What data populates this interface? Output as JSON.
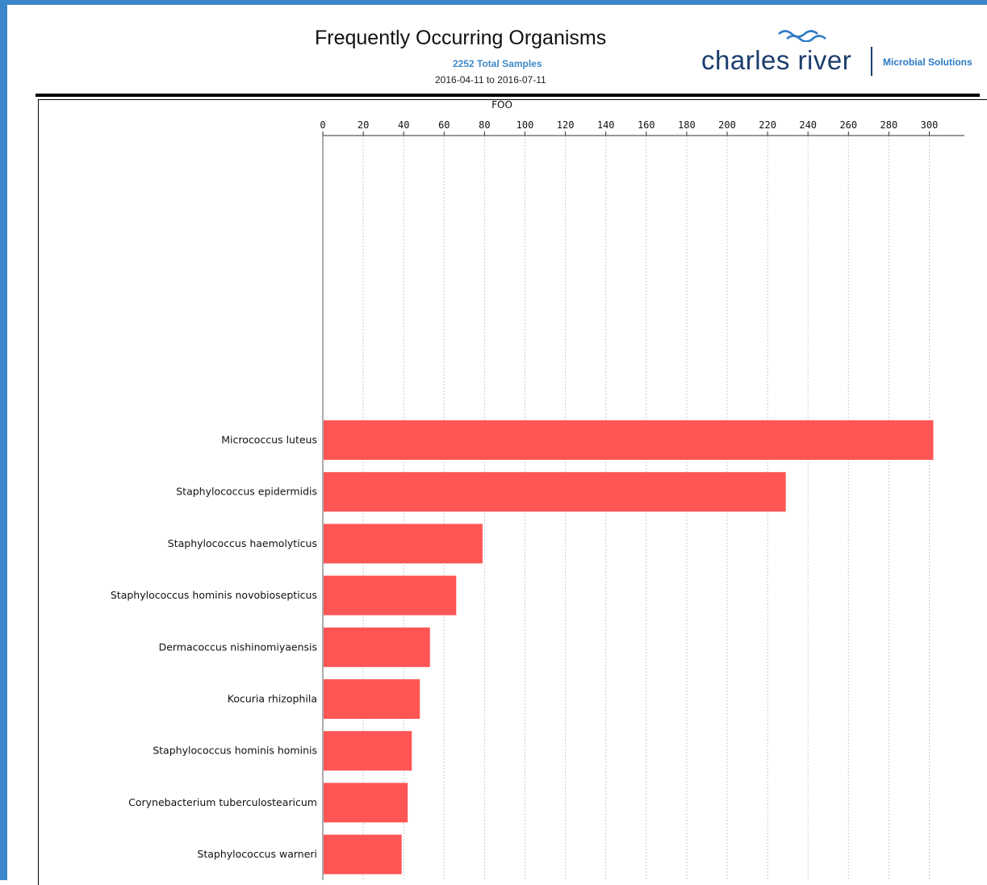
{
  "header": {
    "title": "Frequently Occurring Organisms",
    "total_samples": "2252 Total Samples",
    "date_range": "2016-04-11  to 2016-07-11"
  },
  "logo": {
    "wordmark": "charles river",
    "tagline": "Microbial Solutions",
    "icon": "waves-logo-icon"
  },
  "colors": {
    "frame": "#3c87c9",
    "bar": "#ff5555",
    "brand_text": "#1d3d6d",
    "accent_text": "#3f8ac7"
  },
  "chart_data": {
    "type": "bar",
    "orientation": "horizontal",
    "title": "",
    "xlabel": "FOO",
    "ylabel": "",
    "xlim": [
      0,
      312
    ],
    "x_ticks": [
      0,
      20,
      40,
      60,
      80,
      100,
      120,
      140,
      160,
      180,
      200,
      220,
      240,
      260,
      280,
      300
    ],
    "grid": true,
    "legend": "none",
    "categories": [
      "Micrococcus luteus",
      "Staphylococcus epidermidis",
      "Staphylococcus haemolyticus",
      "Staphylococcus hominis novobiosepticus",
      "Dermacoccus nishinomiyaensis",
      "Kocuria rhizophila",
      "Staphylococcus hominis hominis",
      "Corynebacterium tuberculostearicum",
      "Staphylococcus warneri"
    ],
    "values": [
      302,
      229,
      79,
      66,
      53,
      48,
      44,
      42,
      39
    ]
  }
}
